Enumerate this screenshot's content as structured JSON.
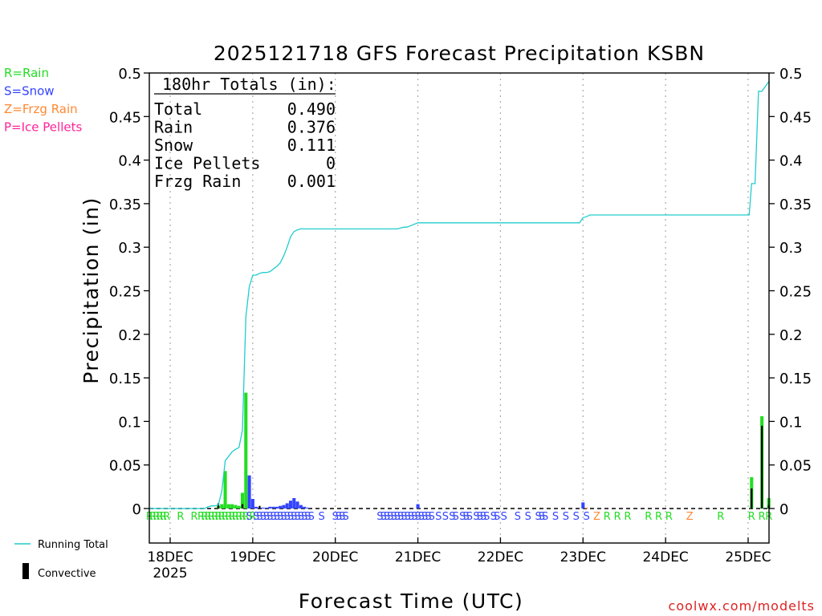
{
  "chart_data": {
    "type": "bar",
    "title": "2025121718 GFS Forecast Precipitation KSBN",
    "xlabel": "Forecast Time (UTC)",
    "ylabel": "Precipitation (in)",
    "ylim": [
      0,
      0.5
    ],
    "y_ticks": [
      0,
      0.05,
      0.1,
      0.15,
      0.2,
      0.25,
      0.3,
      0.35,
      0.4,
      0.45,
      0.5
    ],
    "y_tick_labels": [
      "0",
      "0.05",
      "0.1",
      "0.15",
      "0.2",
      "0.25",
      "0.3",
      "0.35",
      "0.4",
      "0.45",
      "0.5"
    ],
    "x_unit": "hours since 18DEC 2025 00Z",
    "xlim": [
      -6,
      174
    ],
    "x_ticks": [
      {
        "hour": 0,
        "label": "18DEC",
        "sublabel": "2025"
      },
      {
        "hour": 24,
        "label": "19DEC"
      },
      {
        "hour": 48,
        "label": "20DEC"
      },
      {
        "hour": 72,
        "label": "21DEC"
      },
      {
        "hour": 96,
        "label": "22DEC"
      },
      {
        "hour": 120,
        "label": "23DEC"
      },
      {
        "hour": 144,
        "label": "24DEC"
      },
      {
        "hour": 168,
        "label": "25DEC"
      }
    ],
    "grid": true,
    "totals_box": {
      "header": "180hr Totals (in):",
      "rows": [
        {
          "label": "Total",
          "value": "0.490"
        },
        {
          "label": "Rain",
          "value": "0.376"
        },
        {
          "label": "Snow",
          "value": "0.111"
        },
        {
          "label": "Ice Pellets",
          "value": "0"
        },
        {
          "label": "Frzg Rain",
          "value": "0.001"
        }
      ]
    },
    "type_legend": [
      {
        "text": "R=Rain",
        "color": "#22dd22"
      },
      {
        "text": "S=Snow",
        "color": "#3344ff"
      },
      {
        "text": "Z=Frzg Rain",
        "color": "#ff8833"
      },
      {
        "text": "P=Ice Pellets",
        "color": "#ff2299"
      }
    ],
    "series": [
      {
        "name": "Running Total",
        "type": "line",
        "color": "#22cccc",
        "x": [
          -6,
          10,
          10.5,
          11,
          12,
          13,
          14,
          15,
          16,
          17,
          18,
          19,
          20,
          21,
          22,
          23,
          24,
          25,
          26,
          27,
          28,
          29,
          30,
          31,
          32,
          33,
          34,
          35,
          36,
          37,
          38,
          39,
          40,
          41,
          42,
          43,
          44,
          45,
          46,
          48,
          66,
          67,
          68,
          68.8,
          72,
          73,
          96,
          119,
          120,
          121,
          122,
          168,
          168.3,
          169,
          169.6,
          170,
          171,
          171.5,
          172,
          174
        ],
        "y": [
          0,
          0.0,
          0.001,
          0.002,
          0.003,
          0.003,
          0.004,
          0.02,
          0.055,
          0.06,
          0.065,
          0.068,
          0.07,
          0.09,
          0.22,
          0.255,
          0.268,
          0.268,
          0.27,
          0.271,
          0.271,
          0.272,
          0.275,
          0.278,
          0.282,
          0.29,
          0.3,
          0.312,
          0.318,
          0.32,
          0.321,
          0.321,
          0.321,
          0.321,
          0.321,
          0.321,
          0.321,
          0.321,
          0.321,
          0.321,
          0.321,
          0.322,
          0.323,
          0.323,
          0.328,
          0.328,
          0.328,
          0.328,
          0.334,
          0.335,
          0.337,
          0.337,
          0.337,
          0.373,
          0.373,
          0.373,
          0.479,
          0.479,
          0.479,
          0.49
        ]
      },
      {
        "name": "Rain",
        "type": "bar",
        "color": "#22dd22",
        "x": [
          14,
          15,
          16,
          17,
          18,
          19,
          20,
          21,
          22,
          169,
          172,
          174
        ],
        "y": [
          0.003,
          0.005,
          0.043,
          0.005,
          0.005,
          0.004,
          0.003,
          0.018,
          0.133,
          0.036,
          0.106,
          0.012
        ]
      },
      {
        "name": "Snow",
        "type": "bar",
        "color": "#3344ff",
        "x": [
          23,
          24,
          25,
          26,
          27,
          28,
          29,
          30,
          31,
          32,
          33,
          34,
          35,
          36,
          37,
          38,
          39,
          40,
          72,
          120
        ],
        "y": [
          0.038,
          0.011,
          0.002,
          0.001,
          0.001,
          0.001,
          0.002,
          0.002,
          0.002,
          0.003,
          0.004,
          0.006,
          0.009,
          0.012,
          0.008,
          0.004,
          0.002,
          0.001,
          0.005,
          0.007
        ]
      },
      {
        "name": "Frzg Rain",
        "type": "bar",
        "color": "#ff8833",
        "x": [
          121
        ],
        "y": [
          0.001
        ]
      },
      {
        "name": "Convective",
        "type": "bar",
        "color": "#000000",
        "x": [
          14,
          21,
          26,
          169,
          172,
          174
        ],
        "y": [
          0.006,
          0.005,
          0.003,
          0.023,
          0.095,
          0.004
        ]
      }
    ],
    "ptype_codes": [
      {
        "x": -6,
        "code": "R"
      },
      {
        "x": -5,
        "code": "R"
      },
      {
        "x": -4,
        "code": "R"
      },
      {
        "x": -3,
        "code": "R"
      },
      {
        "x": -2,
        "code": "R"
      },
      {
        "x": -1,
        "code": "R"
      },
      {
        "x": 3,
        "code": "R"
      },
      {
        "x": 7,
        "code": "R"
      },
      {
        "x": 9,
        "code": "R"
      },
      {
        "x": 10,
        "code": "R"
      },
      {
        "x": 11,
        "code": "R"
      },
      {
        "x": 12,
        "code": "R"
      },
      {
        "x": 13,
        "code": "R"
      },
      {
        "x": 14,
        "code": "R"
      },
      {
        "x": 15,
        "code": "R"
      },
      {
        "x": 16,
        "code": "R"
      },
      {
        "x": 17,
        "code": "R"
      },
      {
        "x": 18,
        "code": "R"
      },
      {
        "x": 19,
        "code": "R"
      },
      {
        "x": 20,
        "code": "R"
      },
      {
        "x": 21,
        "code": "R"
      },
      {
        "x": 22,
        "code": "R"
      },
      {
        "x": 23,
        "code": "S"
      },
      {
        "x": 24,
        "code": "R"
      },
      {
        "x": 25,
        "code": "S"
      },
      {
        "x": 26,
        "code": "S"
      },
      {
        "x": 27,
        "code": "S"
      },
      {
        "x": 28,
        "code": "S"
      },
      {
        "x": 29,
        "code": "S"
      },
      {
        "x": 30,
        "code": "S"
      },
      {
        "x": 31,
        "code": "S"
      },
      {
        "x": 32,
        "code": "S"
      },
      {
        "x": 33,
        "code": "S"
      },
      {
        "x": 34,
        "code": "S"
      },
      {
        "x": 35,
        "code": "S"
      },
      {
        "x": 36,
        "code": "S"
      },
      {
        "x": 37,
        "code": "S"
      },
      {
        "x": 38,
        "code": "S"
      },
      {
        "x": 39,
        "code": "S"
      },
      {
        "x": 40,
        "code": "S"
      },
      {
        "x": 41,
        "code": "S"
      },
      {
        "x": 44,
        "code": "S"
      },
      {
        "x": 48,
        "code": "S"
      },
      {
        "x": 49,
        "code": "S"
      },
      {
        "x": 50,
        "code": "S"
      },
      {
        "x": 51,
        "code": "S"
      },
      {
        "x": 61,
        "code": "S"
      },
      {
        "x": 62,
        "code": "S"
      },
      {
        "x": 63,
        "code": "S"
      },
      {
        "x": 64,
        "code": "S"
      },
      {
        "x": 65,
        "code": "S"
      },
      {
        "x": 66,
        "code": "S"
      },
      {
        "x": 67,
        "code": "S"
      },
      {
        "x": 68,
        "code": "S"
      },
      {
        "x": 69,
        "code": "S"
      },
      {
        "x": 70,
        "code": "S"
      },
      {
        "x": 71,
        "code": "S"
      },
      {
        "x": 72,
        "code": "S"
      },
      {
        "x": 73,
        "code": "S"
      },
      {
        "x": 74,
        "code": "S"
      },
      {
        "x": 75,
        "code": "S"
      },
      {
        "x": 76,
        "code": "S"
      },
      {
        "x": 78,
        "code": "S"
      },
      {
        "x": 80,
        "code": "S"
      },
      {
        "x": 82,
        "code": "S"
      },
      {
        "x": 83,
        "code": "S"
      },
      {
        "x": 85,
        "code": "S"
      },
      {
        "x": 86,
        "code": "S"
      },
      {
        "x": 87,
        "code": "S"
      },
      {
        "x": 89,
        "code": "S"
      },
      {
        "x": 90,
        "code": "S"
      },
      {
        "x": 91,
        "code": "S"
      },
      {
        "x": 92,
        "code": "S"
      },
      {
        "x": 94,
        "code": "S"
      },
      {
        "x": 95,
        "code": "S"
      },
      {
        "x": 97,
        "code": "S"
      },
      {
        "x": 101,
        "code": "S"
      },
      {
        "x": 104,
        "code": "S"
      },
      {
        "x": 107,
        "code": "S"
      },
      {
        "x": 108,
        "code": "S"
      },
      {
        "x": 109,
        "code": "S"
      },
      {
        "x": 112,
        "code": "S"
      },
      {
        "x": 115,
        "code": "S"
      },
      {
        "x": 118,
        "code": "S"
      },
      {
        "x": 121,
        "code": "S"
      },
      {
        "x": 124,
        "code": "Z"
      },
      {
        "x": 127,
        "code": "R"
      },
      {
        "x": 130,
        "code": "R"
      },
      {
        "x": 133,
        "code": "R"
      },
      {
        "x": 139,
        "code": "R"
      },
      {
        "x": 142,
        "code": "R"
      },
      {
        "x": 145,
        "code": "R"
      },
      {
        "x": 151,
        "code": "Z"
      },
      {
        "x": 160,
        "code": "R"
      },
      {
        "x": 169,
        "code": "R"
      },
      {
        "x": 172,
        "code": "R"
      },
      {
        "x": 174,
        "code": "R"
      }
    ],
    "bottom_legend": [
      {
        "label": "Running Total",
        "color": "#22cccc",
        "kind": "line"
      },
      {
        "label": "Convective",
        "color": "#000000",
        "kind": "bar"
      }
    ],
    "credit": "coolwx.com/modelts"
  }
}
